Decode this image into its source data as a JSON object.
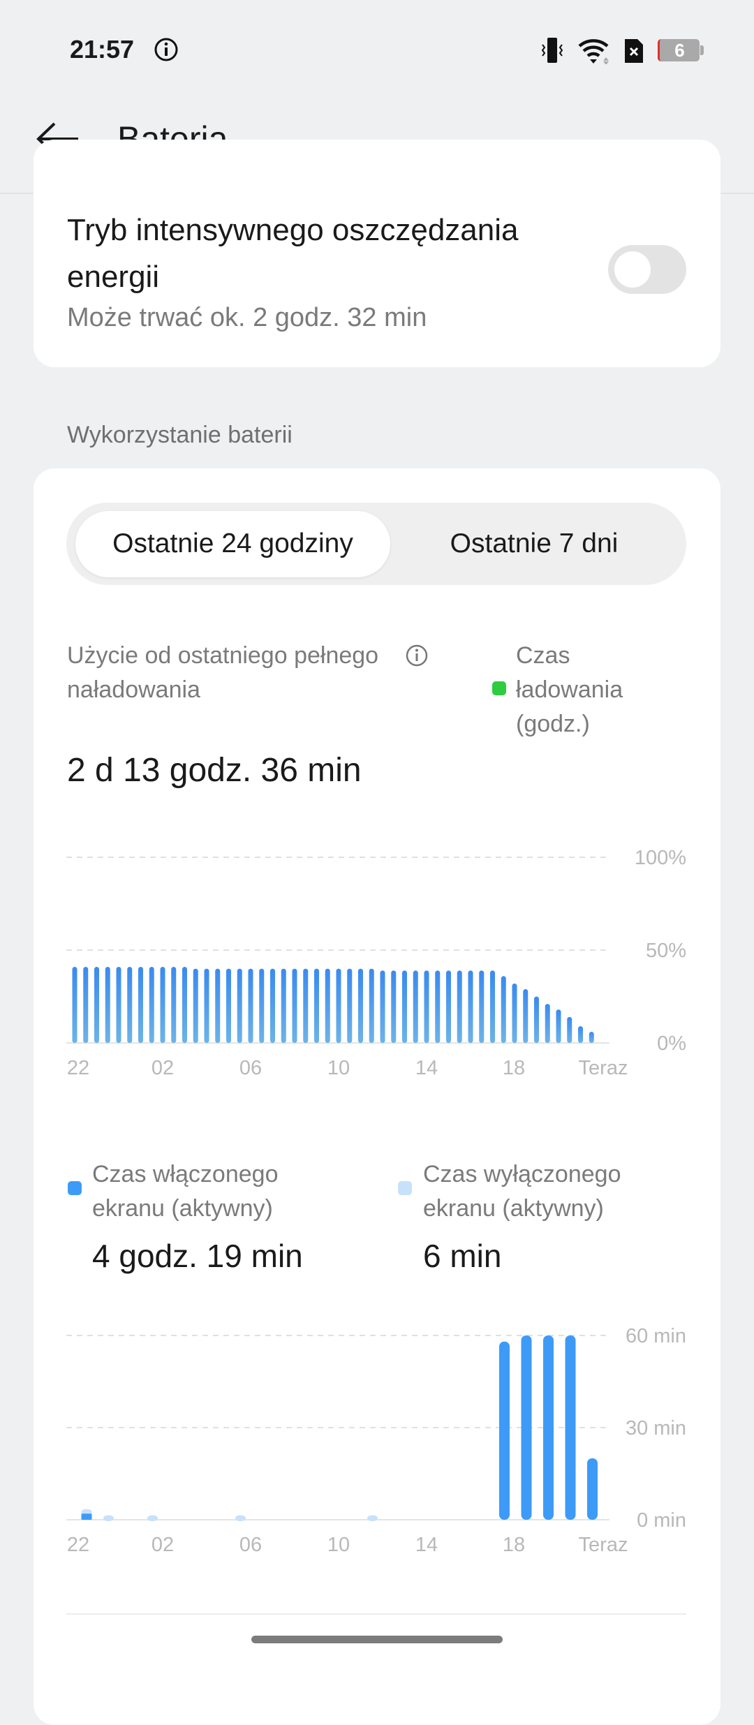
{
  "status_bar": {
    "time": "21:57",
    "battery_level": "6",
    "icons": [
      "info-icon",
      "vibrate-icon",
      "wifi-icon",
      "sim-missing-icon",
      "battery-icon"
    ]
  },
  "header": {
    "title": "Bateria",
    "back_icon": "arrow-left-icon"
  },
  "power_saving": {
    "title": "Tryb intensywnego oszczędzania energii",
    "subtitle": "Może trwać ok. 2 godz. 32 min",
    "enabled": false
  },
  "section_label": "Wykorzystanie baterii",
  "tabs": [
    {
      "label": "Ostatnie 24 godziny",
      "selected": true
    },
    {
      "label": "Ostatnie 7 dni",
      "selected": false
    }
  ],
  "usage": {
    "label": "Użycie od ostatniego pełnego naładowania",
    "value": "2 d 13 godz. 36 min",
    "legend_charging": "Czas ładowania (godz.)",
    "charging_color": "#2ecc40"
  },
  "screen": {
    "on_label": "Czas włączonego ekranu (aktywny)",
    "on_value": "4 godz. 19 min",
    "on_color": "#3d9bf7",
    "off_label": "Czas wyłączonego ekranu (aktywny)",
    "off_value": "6 min",
    "off_color": "#c8e1fb"
  },
  "chart_data": [
    {
      "type": "bar",
      "ylim": [
        0,
        100
      ],
      "yticks": [
        "100%",
        "50%",
        "0%"
      ],
      "xticks": [
        "22",
        "02",
        "06",
        "10",
        "14",
        "18",
        "Teraz"
      ],
      "grid": true,
      "values": [
        41,
        41,
        41,
        41,
        41,
        41,
        41,
        41,
        41,
        41,
        41,
        40,
        40,
        40,
        40,
        40,
        40,
        40,
        40,
        40,
        40,
        40,
        40,
        40,
        40,
        40,
        40,
        40,
        39,
        39,
        39,
        39,
        39,
        39,
        39,
        39,
        39,
        39,
        39,
        36,
        32,
        29,
        25,
        21,
        18,
        14,
        9,
        6
      ]
    },
    {
      "type": "bar",
      "stacked": true,
      "ylim": [
        0,
        60
      ],
      "yticks": [
        "60 min",
        "30 min",
        "0 min"
      ],
      "xticks": [
        "22",
        "02",
        "06",
        "10",
        "14",
        "18",
        "Teraz"
      ],
      "grid": true,
      "series": [
        {
          "name": "Czas włączonego ekranu (aktywny)",
          "values": [
            2,
            0,
            0,
            0,
            0,
            0,
            0,
            0,
            0,
            0,
            0,
            0,
            0,
            0,
            0,
            0,
            0,
            0,
            0,
            58,
            60,
            60,
            60,
            20
          ]
        },
        {
          "name": "Czas wyłączonego ekranu (aktywny)",
          "values": [
            1,
            1,
            0,
            1,
            0,
            0,
            0,
            1,
            0,
            0,
            0,
            0,
            0,
            1,
            0,
            0,
            0,
            0,
            0,
            0,
            0,
            0,
            0,
            0
          ]
        }
      ]
    }
  ]
}
